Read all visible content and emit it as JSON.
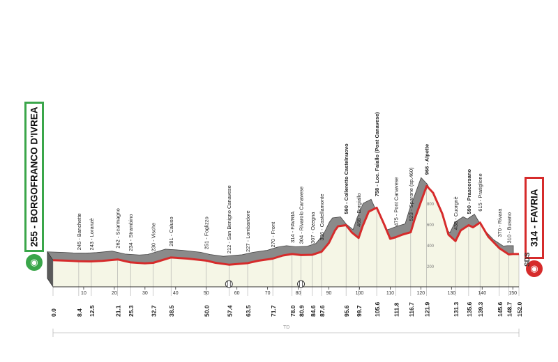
{
  "start": {
    "label": "255 - BORGOFRANCO D'IVREA",
    "icon": "start-cyclist-icon",
    "color": "#3aa64a"
  },
  "finish": {
    "label": "314 - FAVRIA",
    "icon": "finish-cyclist-icon",
    "color": "#d62b2b"
  },
  "sds_label": "SDS",
  "bottom_marker": "TD",
  "chart_data": {
    "type": "area",
    "xlim": [
      0,
      152
    ],
    "ylim": [
      0,
      1000
    ],
    "x_ticks": [
      10,
      20,
      30,
      40,
      50,
      60,
      70,
      80,
      90,
      100,
      110,
      120,
      130,
      140,
      150
    ],
    "y_ticks": [
      200,
      400,
      600,
      800
    ],
    "km_markers": [
      "0.0",
      "8.4",
      "12.5",
      "21.1",
      "25.3",
      "32.7",
      "38.5",
      "50.0",
      "57.4",
      "63.5",
      "71.7",
      "78.0",
      "80.9",
      "84.6",
      "87.6",
      "95.6",
      "99.7",
      "105.6",
      "111.8",
      "116.7",
      "121.9",
      "131.3",
      "135.6",
      "139.3",
      "145.6",
      "148.7",
      "152.0"
    ],
    "profile": [
      [
        0,
        255
      ],
      [
        5,
        250
      ],
      [
        8.4,
        245
      ],
      [
        12.5,
        243
      ],
      [
        16,
        248
      ],
      [
        21.1,
        262
      ],
      [
        25.3,
        234
      ],
      [
        30,
        225
      ],
      [
        32.7,
        230
      ],
      [
        35,
        250
      ],
      [
        38.5,
        281
      ],
      [
        44,
        270
      ],
      [
        50,
        251
      ],
      [
        53,
        230
      ],
      [
        57.4,
        212
      ],
      [
        63.5,
        227
      ],
      [
        67,
        250
      ],
      [
        71.7,
        270
      ],
      [
        75,
        300
      ],
      [
        78,
        314
      ],
      [
        80.9,
        304
      ],
      [
        84.6,
        307
      ],
      [
        87.6,
        336
      ],
      [
        90,
        420
      ],
      [
        92,
        540
      ],
      [
        93,
        580
      ],
      [
        95.6,
        590
      ],
      [
        97.5,
        520
      ],
      [
        99.7,
        468
      ],
      [
        101,
        580
      ],
      [
        103,
        720
      ],
      [
        105.6,
        758
      ],
      [
        108,
        600
      ],
      [
        110,
        460
      ],
      [
        111.8,
        475
      ],
      [
        114,
        500
      ],
      [
        116.7,
        523
      ],
      [
        118,
        650
      ],
      [
        121.9,
        966
      ],
      [
        124,
        900
      ],
      [
        127,
        700
      ],
      [
        129,
        500
      ],
      [
        131.3,
        438
      ],
      [
        133,
        540
      ],
      [
        135.6,
        590
      ],
      [
        137,
        570
      ],
      [
        139.3,
        615
      ],
      [
        142,
        480
      ],
      [
        145.6,
        370
      ],
      [
        148.7,
        310
      ],
      [
        150,
        314
      ],
      [
        152,
        314
      ]
    ],
    "waypoints": [
      {
        "km": 8.4,
        "label": "245 - Banchette",
        "bold": false
      },
      {
        "km": 12.5,
        "label": "243 - Loranzè",
        "bold": false
      },
      {
        "km": 21.1,
        "label": "262 - Scarmagno",
        "bold": false
      },
      {
        "km": 25.3,
        "label": "234 - Strambino",
        "bold": false
      },
      {
        "km": 32.7,
        "label": "230 - Vische",
        "bold": false
      },
      {
        "km": 38.5,
        "label": "281 - Caluso",
        "bold": false
      },
      {
        "km": 50.0,
        "label": "251 - Foglizzo",
        "bold": false
      },
      {
        "km": 57.4,
        "label": "212 - San Benigno Canavese",
        "bold": false
      },
      {
        "km": 63.5,
        "label": "227 - Lombardore",
        "bold": false
      },
      {
        "km": 71.7,
        "label": "270 - Front",
        "bold": false
      },
      {
        "km": 78.0,
        "label": "314 - FAVRIA",
        "bold": false
      },
      {
        "km": 80.9,
        "label": "304 - Rivarolo Canavese",
        "bold": false
      },
      {
        "km": 84.6,
        "label": "307 - Ozegna",
        "bold": false
      },
      {
        "km": 87.6,
        "label": "336 - Castellamonte",
        "bold": false
      },
      {
        "km": 95.6,
        "label": "590 - Colleretto Castelnuovo",
        "bold": true
      },
      {
        "km": 99.7,
        "label": "468 - Borgiallo",
        "bold": false
      },
      {
        "km": 105.6,
        "label": "758 - Loc. Faiallo (Pont Canavese)",
        "bold": true
      },
      {
        "km": 111.8,
        "label": "475 - Pont Canavese",
        "bold": false
      },
      {
        "km": 116.7,
        "label": "523 - Sparone (sp.460)",
        "bold": false
      },
      {
        "km": 121.9,
        "label": "966 - Alpette",
        "bold": true
      },
      {
        "km": 131.3,
        "label": "438 - Cuorgnè",
        "bold": false
      },
      {
        "km": 135.6,
        "label": "590 - Prascorsano",
        "bold": true
      },
      {
        "km": 139.3,
        "label": "615 - Pratiglione",
        "bold": false
      },
      {
        "km": 145.6,
        "label": "370 - Rivara",
        "bold": false
      },
      {
        "km": 148.7,
        "label": "310 - Busano",
        "bold": false
      }
    ],
    "feed_zones_km": [
      57.4,
      80.9
    ]
  }
}
